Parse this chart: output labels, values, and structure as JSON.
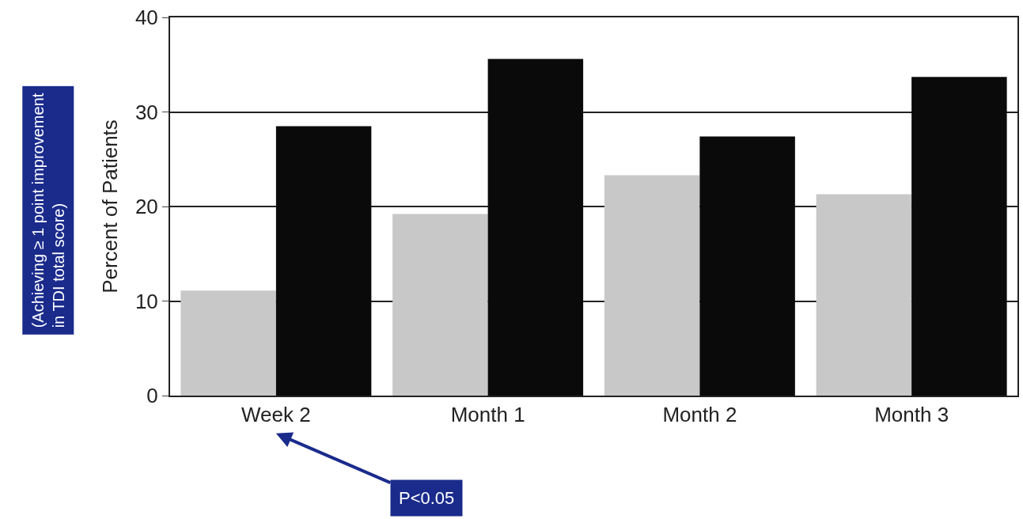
{
  "chart_data": {
    "type": "bar",
    "ylabel": "Percent of Patients",
    "categories": [
      "Week 2",
      "Month 1",
      "Month 2",
      "Month 3"
    ],
    "series": [
      {
        "color": "#c8c8c8",
        "values": [
          11.1,
          19.2,
          23.3,
          21.3
        ]
      },
      {
        "color": "#0a0a0a",
        "values": [
          28.5,
          35.6,
          27.4,
          33.7
        ]
      }
    ],
    "ylim": [
      0,
      40
    ],
    "yticks": [
      0,
      10,
      20,
      30,
      40
    ],
    "grid": "y",
    "legend": false,
    "annotations": [
      "(Achieving ≥ 1 point improvement in TDI total score)",
      "P<0.05"
    ]
  }
}
